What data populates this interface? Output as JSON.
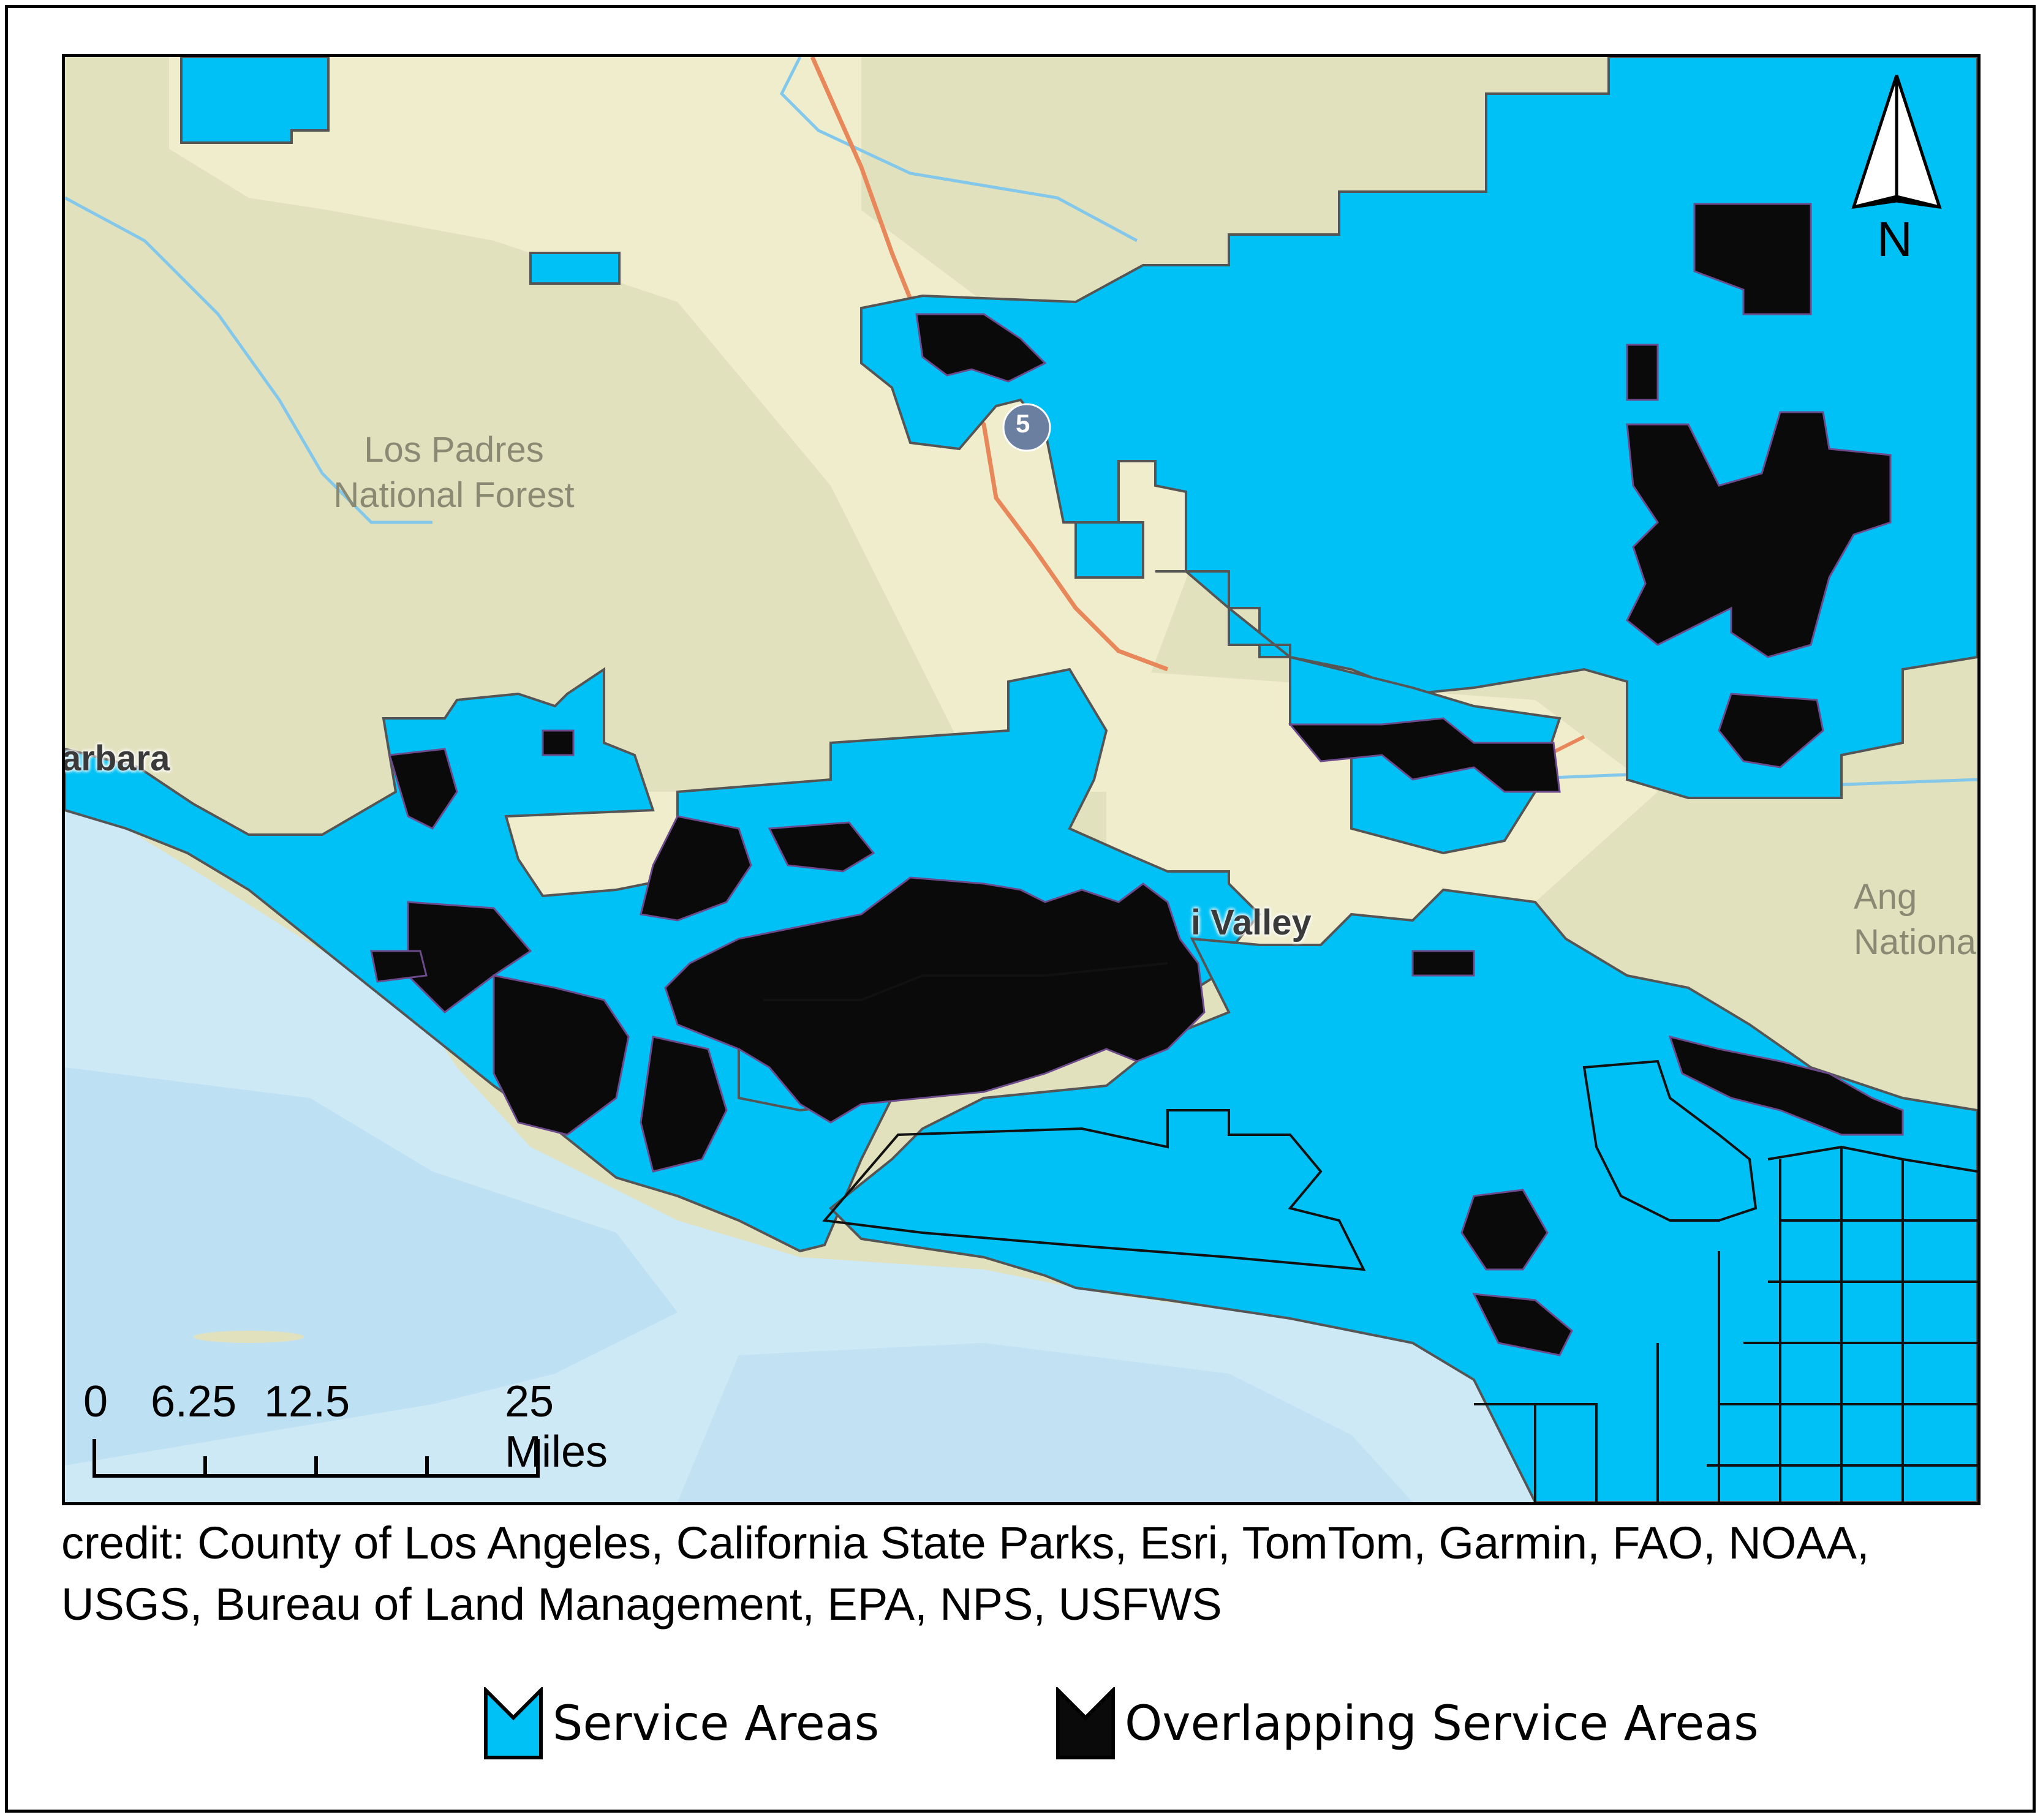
{
  "map": {
    "labels": {
      "forest_left": "Los Padres\nNational Forest",
      "forest_right": "Ang\nNationa",
      "place_left": "arbara",
      "place_valley": "i Valley",
      "highway_shield": "5"
    },
    "north_arrow": {
      "label": "N",
      "icon": "north-arrow-icon"
    },
    "scale_bar": {
      "ticks": [
        "0",
        "6.25",
        "12.5",
        "25 Miles"
      ]
    },
    "colors": {
      "land": "#e2e1be",
      "land_light": "#efedcc",
      "ocean": "#cde9f6",
      "ocean_deep": "#b7dcf1",
      "service_area": "#00c1f5",
      "overlap": "#000000",
      "road": "#e8875a",
      "river": "#83c8ea"
    }
  },
  "credit": "credit: County of Los Angeles, California State Parks, Esri, TomTom, Garmin, FAO, NOAA, USGS, Bureau of Land Management, EPA, NPS, USFWS",
  "legend": {
    "items": [
      {
        "label": "Service Areas",
        "color": "#00c1f5",
        "icon": "service-area-swatch-icon"
      },
      {
        "label": "Overlapping Service Areas",
        "color": "#0a0a0a",
        "icon": "overlap-swatch-icon"
      }
    ]
  }
}
